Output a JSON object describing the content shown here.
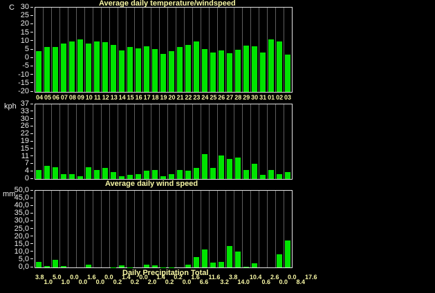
{
  "window": {
    "background": "#000000"
  },
  "colors": {
    "bg": "#000000",
    "bar": "#00e400",
    "grid": "#5f5f5f",
    "border": "#e6e6e6",
    "text": "#ececec",
    "accent": "#f6f6a4"
  },
  "chart_data": [
    {
      "type": "bar",
      "name": "temperature",
      "title": "Average daily temperature/windspeed",
      "unit": "C",
      "ylabel": "C",
      "xlabel": "",
      "ylim": [
        -20,
        30
      ],
      "yticks": [
        "30",
        "25",
        "20",
        "15",
        "10",
        "5",
        "0",
        "-5",
        "-10",
        "-15",
        "-20"
      ],
      "grid": "vertical-only",
      "legend": "none",
      "categories": [
        "04",
        "05",
        "06",
        "07",
        "08",
        "09",
        "10",
        "11",
        "12",
        "13",
        "14",
        "15",
        "16",
        "17",
        "18",
        "19",
        "20",
        "21",
        "22",
        "23",
        "24",
        "25",
        "26",
        "27",
        "28",
        "29",
        "30",
        "31",
        "01",
        "02",
        "03"
      ],
      "values": [
        4.0,
        6.5,
        6.5,
        8.5,
        10.0,
        11.0,
        8.5,
        10.0,
        9.5,
        8.0,
        4.5,
        6.5,
        6.0,
        7.0,
        5.5,
        2.5,
        4.0,
        6.5,
        8.0,
        10.0,
        5.5,
        3.5,
        4.5,
        3.0,
        5.0,
        7.5,
        7.0,
        3.5,
        11.0,
        10.0,
        2.0
      ]
    },
    {
      "type": "bar",
      "name": "windspeed",
      "title": "Average daily wind speed",
      "unit": "kph",
      "ylabel": "kph",
      "xlabel": "",
      "ylim": [
        0,
        37
      ],
      "yticks": [
        "37",
        "33",
        "30",
        "26",
        "22",
        "19",
        "15",
        "11",
        "7",
        "4",
        "0"
      ],
      "grid": "vertical-only",
      "legend": "none",
      "categories": [
        "04",
        "05",
        "06",
        "07",
        "08",
        "09",
        "10",
        "11",
        "12",
        "13",
        "14",
        "15",
        "16",
        "17",
        "18",
        "19",
        "20",
        "21",
        "22",
        "23",
        "24",
        "25",
        "26",
        "27",
        "28",
        "29",
        "30",
        "31",
        "01",
        "02",
        "03"
      ],
      "values": [
        4.5,
        6.5,
        6.0,
        2.5,
        2.5,
        1.5,
        6.0,
        4.5,
        5.5,
        3.5,
        1.5,
        2.0,
        2.5,
        4.0,
        4.5,
        1.5,
        2.5,
        4.5,
        4.0,
        5.5,
        12.5,
        5.5,
        11.5,
        10.0,
        10.5,
        4.5,
        7.5,
        2.0,
        4.5,
        2.5,
        3.5
      ]
    },
    {
      "type": "bar",
      "name": "precipitation",
      "title": "Daily Precipitation Total",
      "unit": "mm",
      "ylabel": "mm",
      "xlabel": "",
      "ylim": [
        0,
        50
      ],
      "yticks": [
        "50,0",
        "45,0",
        "40,0",
        "35,0",
        "30,0",
        "25,0",
        "20,0",
        "15,0",
        "10,0",
        "5,0",
        "0,0"
      ],
      "grid": "vertical-only",
      "legend": "none",
      "categories": [
        "04",
        "05",
        "06",
        "07",
        "08",
        "09",
        "10",
        "11",
        "12",
        "13",
        "14",
        "15",
        "16",
        "17",
        "18",
        "19",
        "20",
        "21",
        "22",
        "23",
        "24",
        "25",
        "26",
        "27",
        "28",
        "29",
        "30",
        "31",
        "01",
        "02",
        "03"
      ],
      "values": [
        3.8,
        1.0,
        5.0,
        1.0,
        0.0,
        0.0,
        1.6,
        0.0,
        0.0,
        0.2,
        1.4,
        0.2,
        0.0,
        2.0,
        1.4,
        0.2,
        0.2,
        0.0,
        1.6,
        6.6,
        11.6,
        3.2,
        3.8,
        14.0,
        10.4,
        0.6,
        2.6,
        0.0,
        0.0,
        8.4,
        17.6
      ],
      "value_labels": [
        "3.8",
        "1.0",
        "5.0",
        "1.0",
        "0.0",
        "0.0",
        "1.6",
        "0.0",
        "0.0",
        "0.2",
        "1.4",
        "0.2",
        "0.0",
        "2.0",
        "1.4",
        "0.2",
        "0.2",
        "0.0",
        "1.6",
        "6.6",
        "11.6",
        "3.2",
        "3.8",
        "14.0",
        "10.4",
        "0.6",
        "2.6",
        "0.0",
        "0.0",
        "8.4",
        "17.6"
      ]
    }
  ]
}
